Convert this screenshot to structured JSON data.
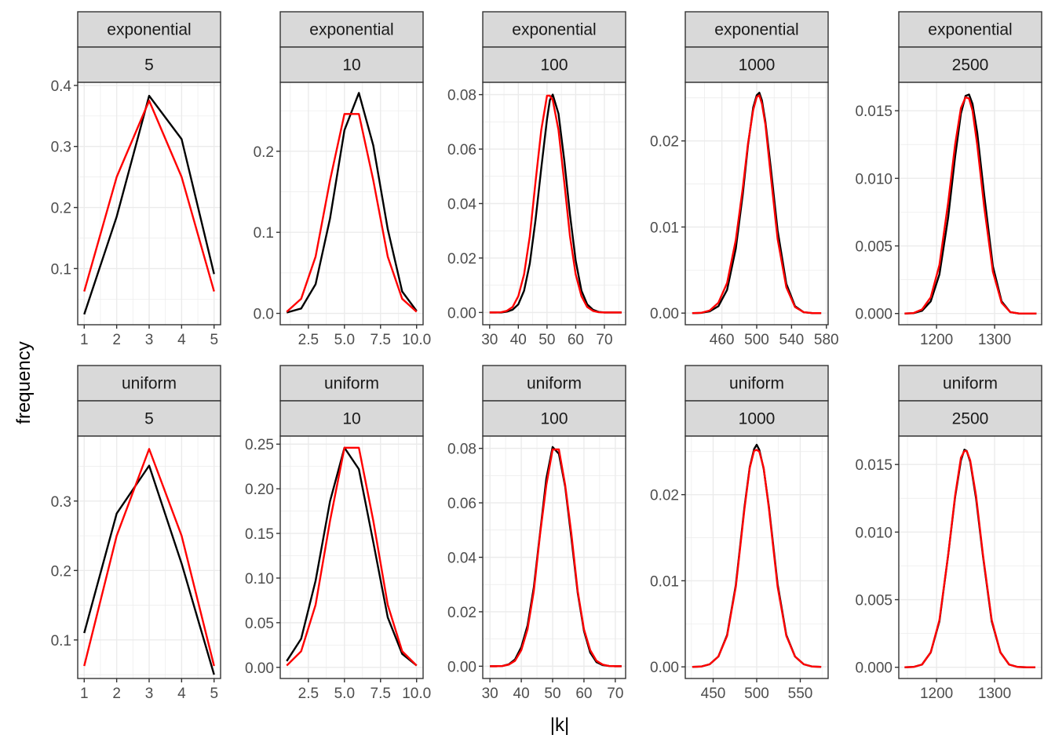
{
  "axis": {
    "xlabel": "|k|",
    "ylabel": "frequency"
  },
  "colors": {
    "observed": "#000000",
    "theoretical": "#ff0000"
  },
  "chart_data": [
    {
      "type": "line",
      "facet_row": "exponential",
      "facet_col": "5",
      "xlim": [
        0.8,
        5.2
      ],
      "ylim": [
        0.008,
        0.405
      ],
      "xticks": [
        1,
        2,
        3,
        4,
        5
      ],
      "xtick_labels": [
        "1",
        "2",
        "3",
        "4",
        "5"
      ],
      "yticks": [
        0.1,
        0.2,
        0.3,
        0.4
      ],
      "ytick_labels": [
        "0.1",
        "0.2",
        "0.3",
        "0.4"
      ],
      "x": [
        1,
        2,
        3,
        4,
        5
      ],
      "series": [
        {
          "color": "#000000",
          "values": [
            0.025,
            0.185,
            0.383,
            0.312,
            0.091
          ]
        },
        {
          "color": "#ff0000",
          "values": [
            0.0625,
            0.25,
            0.375,
            0.25,
            0.0625
          ]
        }
      ]
    },
    {
      "type": "line",
      "facet_row": "exponential",
      "facet_col": "10",
      "xlim": [
        0.55,
        10.45
      ],
      "ylim": [
        -0.014,
        0.285
      ],
      "xticks": [
        2.5,
        5.0,
        7.5,
        10.0
      ],
      "xtick_labels": [
        "2.5",
        "5.0",
        "7.5",
        "10.0"
      ],
      "yticks": [
        0.0,
        0.1,
        0.2
      ],
      "ytick_labels": [
        "0.0",
        "0.1",
        "0.2"
      ],
      "x": [
        1,
        2,
        3,
        4,
        5,
        6,
        7,
        8,
        9,
        10
      ],
      "series": [
        {
          "color": "#000000",
          "values": [
            0.001,
            0.006,
            0.036,
            0.117,
            0.226,
            0.272,
            0.207,
            0.104,
            0.027,
            0.003
          ]
        },
        {
          "color": "#ff0000",
          "values": [
            0.002,
            0.018,
            0.07,
            0.164,
            0.246,
            0.246,
            0.164,
            0.07,
            0.018,
            0.002
          ]
        }
      ]
    },
    {
      "type": "line",
      "facet_row": "exponential",
      "facet_col": "100",
      "xlim": [
        27.6,
        77.4
      ],
      "ylim": [
        -0.0045,
        0.0845
      ],
      "xticks": [
        30,
        40,
        50,
        60,
        70
      ],
      "xtick_labels": [
        "30",
        "40",
        "50",
        "60",
        "70"
      ],
      "yticks": [
        0.0,
        0.02,
        0.04,
        0.06,
        0.08
      ],
      "ytick_labels": [
        "0.00",
        "0.02",
        "0.04",
        "0.06",
        "0.08"
      ],
      "x": [
        30,
        32,
        34,
        36,
        38,
        40,
        42,
        44,
        46,
        48,
        50,
        51,
        52,
        54,
        56,
        58,
        60,
        62,
        64,
        66,
        68,
        70,
        72,
        74,
        76
      ],
      "series": [
        {
          "color": "#000000",
          "values": [
            0.0,
            0.0,
            0.0,
            0.0003,
            0.001,
            0.003,
            0.008,
            0.018,
            0.034,
            0.053,
            0.071,
            0.078,
            0.08,
            0.073,
            0.056,
            0.036,
            0.019,
            0.008,
            0.003,
            0.001,
            0.0002,
            0.0,
            0.0,
            0.0,
            0.0
          ]
        },
        {
          "color": "#ff0000",
          "values": [
            0.0,
            0.0,
            0.0001,
            0.0006,
            0.002,
            0.006,
            0.014,
            0.028,
            0.048,
            0.067,
            0.0796,
            0.0796,
            0.078,
            0.067,
            0.048,
            0.028,
            0.014,
            0.006,
            0.002,
            0.0006,
            0.0001,
            0.0,
            0.0,
            0.0,
            0.0
          ]
        }
      ]
    },
    {
      "type": "line",
      "facet_row": "exponential",
      "facet_col": "1000",
      "xlim": [
        418,
        582
      ],
      "ylim": [
        -0.00135,
        0.0268
      ],
      "xticks": [
        460,
        500,
        540,
        580
      ],
      "xtick_labels": [
        "460",
        "500",
        "540",
        "580"
      ],
      "yticks": [
        0.0,
        0.01,
        0.02
      ],
      "ytick_labels": [
        "0.00",
        "0.01",
        "0.02"
      ],
      "x": [
        426,
        436,
        446,
        456,
        466,
        476,
        484,
        490,
        496,
        500,
        503,
        506,
        510,
        516,
        524,
        534,
        544,
        554,
        564,
        574
      ],
      "series": [
        {
          "color": "#000000",
          "values": [
            0.0,
            2e-05,
            0.0002,
            0.0008,
            0.0027,
            0.0075,
            0.0138,
            0.0195,
            0.0239,
            0.0253,
            0.0256,
            0.0247,
            0.0222,
            0.017,
            0.0096,
            0.0034,
            0.0008,
            0.0001,
            0.0,
            0.0
          ]
        },
        {
          "color": "#ff0000",
          "values": [
            0.0,
            3e-05,
            0.0003,
            0.0012,
            0.0035,
            0.0085,
            0.0145,
            0.0197,
            0.0236,
            0.0251,
            0.0253,
            0.0243,
            0.0219,
            0.0161,
            0.0086,
            0.003,
            0.0007,
            0.0001,
            0.0,
            0.0
          ]
        }
      ]
    },
    {
      "type": "line",
      "facet_row": "exponential",
      "facet_col": "2500",
      "xlim": [
        1135,
        1381
      ],
      "ylim": [
        -0.00083,
        0.0171
      ],
      "xticks": [
        1200,
        1300
      ],
      "xtick_labels": [
        "1200",
        "1300"
      ],
      "yticks": [
        0.0,
        0.005,
        0.01,
        0.015
      ],
      "ytick_labels": [
        "0.000",
        "0.005",
        "0.010",
        "0.015"
      ],
      "x": [
        1145,
        1160,
        1175,
        1190,
        1205,
        1220,
        1232,
        1242,
        1250,
        1256,
        1262,
        1270,
        1282,
        1297,
        1312,
        1327,
        1342,
        1357,
        1372
      ],
      "series": [
        {
          "color": "#000000",
          "values": [
            0.0,
            2e-05,
            0.0002,
            0.0009,
            0.0029,
            0.0071,
            0.0116,
            0.0148,
            0.0161,
            0.0162,
            0.0155,
            0.0134,
            0.0088,
            0.0035,
            0.0009,
            0.0001,
            0.0,
            0.0,
            0.0
          ]
        },
        {
          "color": "#ff0000",
          "values": [
            0.0,
            3e-05,
            0.0003,
            0.0012,
            0.0036,
            0.0082,
            0.0125,
            0.0152,
            0.016,
            0.0159,
            0.015,
            0.0125,
            0.0079,
            0.0031,
            0.0008,
            0.0001,
            0.0,
            0.0,
            0.0
          ]
        }
      ]
    },
    {
      "type": "line",
      "facet_row": "uniform",
      "facet_col": "5",
      "xlim": [
        0.8,
        5.2
      ],
      "ylim": [
        0.0445,
        0.3935
      ],
      "xticks": [
        1,
        2,
        3,
        4,
        5
      ],
      "xtick_labels": [
        "1",
        "2",
        "3",
        "4",
        "5"
      ],
      "yticks": [
        0.1,
        0.2,
        0.3
      ],
      "ytick_labels": [
        "0.1",
        "0.2",
        "0.3"
      ],
      "x": [
        1,
        2,
        3,
        4,
        5
      ],
      "series": [
        {
          "color": "#000000",
          "values": [
            0.11,
            0.282,
            0.351,
            0.21,
            0.05
          ]
        },
        {
          "color": "#ff0000",
          "values": [
            0.0625,
            0.25,
            0.375,
            0.25,
            0.0625
          ]
        }
      ]
    },
    {
      "type": "line",
      "facet_row": "uniform",
      "facet_col": "10",
      "xlim": [
        0.55,
        10.45
      ],
      "ylim": [
        -0.0125,
        0.259
      ],
      "xticks": [
        2.5,
        5.0,
        7.5,
        10.0
      ],
      "xtick_labels": [
        "2.5",
        "5.0",
        "7.5",
        "10.0"
      ],
      "yticks": [
        0.0,
        0.05,
        0.1,
        0.15,
        0.2,
        0.25
      ],
      "ytick_labels": [
        "0.00",
        "0.05",
        "0.10",
        "0.15",
        "0.20",
        "0.25"
      ],
      "x": [
        1,
        2,
        3,
        4,
        5,
        6,
        7,
        8,
        9,
        10
      ],
      "series": [
        {
          "color": "#000000",
          "values": [
            0.007,
            0.032,
            0.097,
            0.186,
            0.246,
            0.222,
            0.14,
            0.056,
            0.015,
            0.002
          ]
        },
        {
          "color": "#ff0000",
          "values": [
            0.002,
            0.018,
            0.07,
            0.164,
            0.246,
            0.246,
            0.164,
            0.07,
            0.018,
            0.002
          ]
        }
      ]
    },
    {
      "type": "line",
      "facet_row": "uniform",
      "facet_col": "100",
      "xlim": [
        27.7,
        73.3
      ],
      "ylim": [
        -0.0045,
        0.0845
      ],
      "xticks": [
        30,
        40,
        50,
        60,
        70
      ],
      "xtick_labels": [
        "30",
        "40",
        "50",
        "60",
        "70"
      ],
      "yticks": [
        0.0,
        0.02,
        0.04,
        0.06,
        0.08
      ],
      "ytick_labels": [
        "0.00",
        "0.02",
        "0.04",
        "0.06",
        "0.08"
      ],
      "x": [
        30,
        32,
        34,
        36,
        38,
        40,
        42,
        44,
        46,
        48,
        50,
        52,
        54,
        56,
        58,
        60,
        62,
        64,
        66,
        68,
        70,
        72
      ],
      "series": [
        {
          "color": "#000000",
          "values": [
            0.0,
            0.0,
            0.0001,
            0.0007,
            0.0025,
            0.007,
            0.015,
            0.029,
            0.049,
            0.069,
            0.0805,
            0.078,
            0.066,
            0.047,
            0.027,
            0.013,
            0.005,
            0.0015,
            0.0004,
            0.0001,
            0.0,
            0.0
          ]
        },
        {
          "color": "#ff0000",
          "values": [
            0.0,
            0.0,
            0.0001,
            0.0006,
            0.002,
            0.0059,
            0.0136,
            0.0276,
            0.0485,
            0.0666,
            0.0796,
            0.0796,
            0.0666,
            0.0485,
            0.0276,
            0.0136,
            0.0059,
            0.002,
            0.0006,
            0.0001,
            0.0,
            0.0
          ]
        }
      ]
    },
    {
      "type": "line",
      "facet_row": "uniform",
      "facet_col": "1000",
      "xlim": [
        418,
        582
      ],
      "ylim": [
        -0.00135,
        0.0268
      ],
      "xticks": [
        450,
        500,
        550
      ],
      "xtick_labels": [
        "450",
        "500",
        "550"
      ],
      "yticks": [
        0.0,
        0.01,
        0.02
      ],
      "ytick_labels": [
        "0.00",
        "0.01",
        "0.02"
      ],
      "x": [
        426,
        436,
        446,
        456,
        466,
        476,
        486,
        492,
        497,
        500,
        503,
        508,
        514,
        524,
        534,
        544,
        554,
        564,
        574
      ],
      "series": [
        {
          "color": "#000000",
          "values": [
            0.0,
            3e-05,
            0.0003,
            0.0012,
            0.0037,
            0.0095,
            0.0186,
            0.0232,
            0.0253,
            0.0258,
            0.0252,
            0.023,
            0.0186,
            0.0096,
            0.0037,
            0.0012,
            0.0003,
            3e-05,
            0.0
          ]
        },
        {
          "color": "#ff0000",
          "values": [
            0.0,
            3e-05,
            0.0003,
            0.0012,
            0.0036,
            0.0093,
            0.0184,
            0.0231,
            0.0251,
            0.0252,
            0.025,
            0.0231,
            0.0184,
            0.0093,
            0.0036,
            0.0012,
            0.0003,
            3e-05,
            0.0
          ]
        }
      ]
    },
    {
      "type": "line",
      "facet_row": "uniform",
      "facet_col": "2500",
      "xlim": [
        1135,
        1381
      ],
      "ylim": [
        -0.00083,
        0.0171
      ],
      "xticks": [
        1200,
        1300
      ],
      "xtick_labels": [
        "1200",
        "1300"
      ],
      "yticks": [
        0.0,
        0.005,
        0.01,
        0.015
      ],
      "ytick_labels": [
        "0.000",
        "0.005",
        "0.010",
        "0.015"
      ],
      "x": [
        1145,
        1160,
        1175,
        1190,
        1205,
        1220,
        1232,
        1242,
        1248,
        1252,
        1258,
        1268,
        1280,
        1295,
        1310,
        1325,
        1340,
        1355,
        1370
      ],
      "series": [
        {
          "color": "#000000",
          "values": [
            0.0,
            2e-05,
            0.0002,
            0.0011,
            0.0034,
            0.0083,
            0.0126,
            0.0153,
            0.0161,
            0.016,
            0.0152,
            0.0125,
            0.0082,
            0.0034,
            0.0011,
            0.0002,
            2e-05,
            0.0,
            0.0
          ]
        },
        {
          "color": "#ff0000",
          "values": [
            0.0,
            2e-05,
            0.0002,
            0.0011,
            0.0035,
            0.0083,
            0.0127,
            0.0155,
            0.016,
            0.016,
            0.0153,
            0.0127,
            0.0083,
            0.0035,
            0.0011,
            0.0002,
            2e-05,
            0.0,
            0.0
          ]
        }
      ]
    }
  ]
}
